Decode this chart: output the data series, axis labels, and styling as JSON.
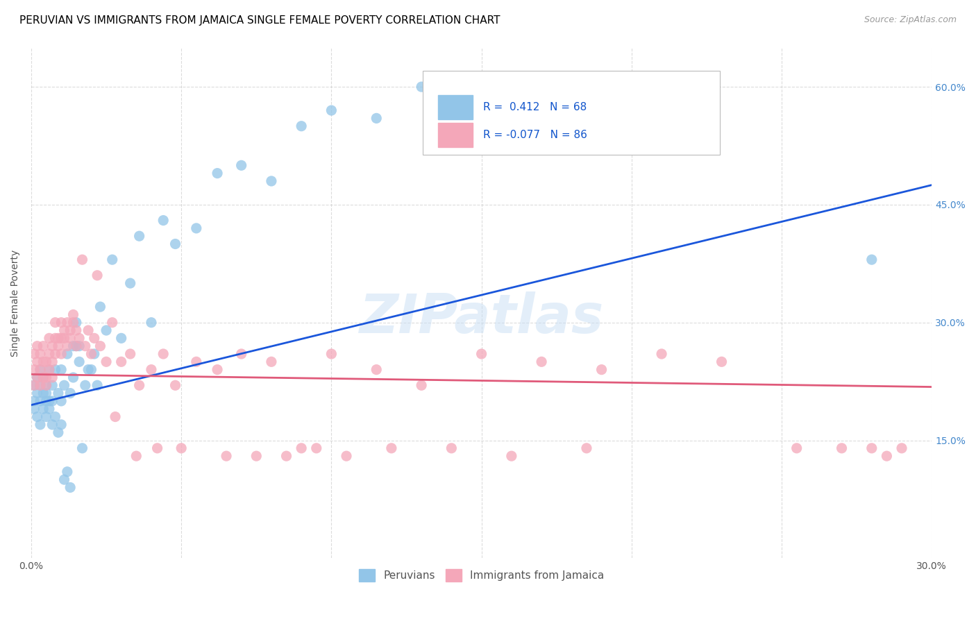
{
  "title": "PERUVIAN VS IMMIGRANTS FROM JAMAICA SINGLE FEMALE POVERTY CORRELATION CHART",
  "source": "Source: ZipAtlas.com",
  "ylabel": "Single Female Poverty",
  "xlim": [
    0.0,
    0.3
  ],
  "ylim": [
    0.0,
    0.65
  ],
  "xtick_vals": [
    0.0,
    0.05,
    0.1,
    0.15,
    0.2,
    0.25,
    0.3
  ],
  "xtick_labels": [
    "0.0%",
    "",
    "",
    "",
    "",
    "",
    "30.0%"
  ],
  "ytick_vals_right": [
    0.15,
    0.3,
    0.45,
    0.6
  ],
  "ytick_labels_right": [
    "15.0%",
    "30.0%",
    "45.0%",
    "60.0%"
  ],
  "legend_label1": "Peruvians",
  "legend_label2": "Immigrants from Jamaica",
  "R1": "0.412",
  "N1": "68",
  "R2": "-0.077",
  "N2": "86",
  "color_blue": "#92c5e8",
  "color_pink": "#f4a7b9",
  "line_color_blue": "#1a56db",
  "line_color_pink": "#e05a7a",
  "watermark": "ZIPatlas",
  "title_fontsize": 11,
  "axis_label_fontsize": 10,
  "tick_fontsize": 10,
  "peru_line_x": [
    0.0,
    0.3
  ],
  "peru_line_y": [
    0.195,
    0.475
  ],
  "jam_line_x": [
    0.0,
    0.3
  ],
  "jam_line_y": [
    0.234,
    0.218
  ],
  "peruvians_x": [
    0.001,
    0.001,
    0.001,
    0.002,
    0.002,
    0.002,
    0.003,
    0.003,
    0.003,
    0.003,
    0.004,
    0.004,
    0.004,
    0.005,
    0.005,
    0.005,
    0.005,
    0.006,
    0.006,
    0.006,
    0.007,
    0.007,
    0.007,
    0.008,
    0.008,
    0.009,
    0.009,
    0.01,
    0.01,
    0.01,
    0.011,
    0.011,
    0.012,
    0.012,
    0.013,
    0.013,
    0.014,
    0.014,
    0.015,
    0.015,
    0.016,
    0.016,
    0.017,
    0.018,
    0.019,
    0.02,
    0.021,
    0.022,
    0.023,
    0.025,
    0.027,
    0.03,
    0.033,
    0.036,
    0.04,
    0.044,
    0.048,
    0.055,
    0.062,
    0.07,
    0.08,
    0.09,
    0.1,
    0.115,
    0.13,
    0.15,
    0.185,
    0.28
  ],
  "peruvians_y": [
    0.22,
    0.2,
    0.19,
    0.21,
    0.23,
    0.18,
    0.2,
    0.22,
    0.17,
    0.24,
    0.21,
    0.19,
    0.23,
    0.2,
    0.22,
    0.18,
    0.21,
    0.24,
    0.2,
    0.19,
    0.17,
    0.22,
    0.2,
    0.18,
    0.24,
    0.16,
    0.21,
    0.2,
    0.24,
    0.17,
    0.1,
    0.22,
    0.11,
    0.26,
    0.09,
    0.21,
    0.23,
    0.27,
    0.27,
    0.3,
    0.27,
    0.25,
    0.14,
    0.22,
    0.24,
    0.24,
    0.26,
    0.22,
    0.32,
    0.29,
    0.38,
    0.28,
    0.35,
    0.41,
    0.3,
    0.43,
    0.4,
    0.42,
    0.49,
    0.5,
    0.48,
    0.55,
    0.57,
    0.56,
    0.6,
    0.52,
    0.53,
    0.38
  ],
  "jamaica_x": [
    0.001,
    0.001,
    0.001,
    0.002,
    0.002,
    0.002,
    0.003,
    0.003,
    0.003,
    0.004,
    0.004,
    0.004,
    0.005,
    0.005,
    0.005,
    0.006,
    0.006,
    0.006,
    0.007,
    0.007,
    0.007,
    0.008,
    0.008,
    0.008,
    0.009,
    0.009,
    0.01,
    0.01,
    0.01,
    0.011,
    0.011,
    0.012,
    0.012,
    0.013,
    0.013,
    0.014,
    0.014,
    0.015,
    0.015,
    0.016,
    0.017,
    0.018,
    0.019,
    0.02,
    0.021,
    0.022,
    0.023,
    0.025,
    0.027,
    0.03,
    0.033,
    0.036,
    0.04,
    0.044,
    0.048,
    0.055,
    0.062,
    0.07,
    0.08,
    0.09,
    0.1,
    0.115,
    0.13,
    0.15,
    0.17,
    0.19,
    0.21,
    0.23,
    0.255,
    0.27,
    0.28,
    0.285,
    0.29,
    0.185,
    0.16,
    0.14,
    0.12,
    0.105,
    0.095,
    0.085,
    0.075,
    0.065,
    0.05,
    0.042,
    0.035,
    0.028
  ],
  "jamaica_y": [
    0.24,
    0.26,
    0.22,
    0.25,
    0.23,
    0.27,
    0.22,
    0.26,
    0.24,
    0.23,
    0.27,
    0.25,
    0.25,
    0.23,
    0.22,
    0.28,
    0.26,
    0.24,
    0.27,
    0.25,
    0.23,
    0.28,
    0.26,
    0.3,
    0.28,
    0.27,
    0.3,
    0.26,
    0.28,
    0.29,
    0.28,
    0.3,
    0.27,
    0.29,
    0.28,
    0.31,
    0.3,
    0.27,
    0.29,
    0.28,
    0.38,
    0.27,
    0.29,
    0.26,
    0.28,
    0.36,
    0.27,
    0.25,
    0.3,
    0.25,
    0.26,
    0.22,
    0.24,
    0.26,
    0.22,
    0.25,
    0.24,
    0.26,
    0.25,
    0.14,
    0.26,
    0.24,
    0.22,
    0.26,
    0.25,
    0.24,
    0.26,
    0.25,
    0.14,
    0.14,
    0.14,
    0.13,
    0.14,
    0.14,
    0.13,
    0.14,
    0.14,
    0.13,
    0.14,
    0.13,
    0.13,
    0.13,
    0.14,
    0.14,
    0.13,
    0.18
  ]
}
